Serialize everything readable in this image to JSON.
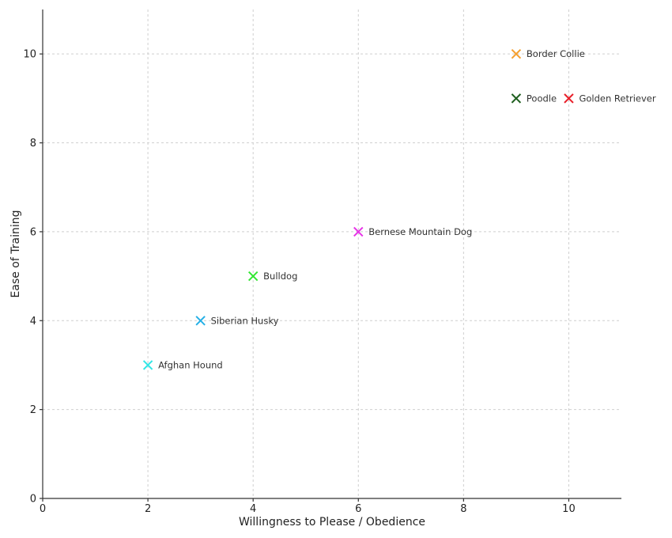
{
  "chart_data": {
    "type": "scatter",
    "title": "",
    "xlabel": "Willingness to Please / Obedience",
    "ylabel": "Ease of Training",
    "xlim": [
      0,
      11
    ],
    "ylim": [
      0,
      11
    ],
    "xticks": [
      0,
      2,
      4,
      6,
      8,
      10
    ],
    "yticks": [
      0,
      2,
      4,
      6,
      8,
      10
    ],
    "grid": true,
    "marker": "x",
    "points": [
      {
        "label": "Afghan Hound",
        "x": 2,
        "y": 3,
        "color": "#33e6e6"
      },
      {
        "label": "Siberian Husky",
        "x": 3,
        "y": 4,
        "color": "#26b0e6"
      },
      {
        "label": "Bulldog",
        "x": 4,
        "y": 5,
        "color": "#33e633"
      },
      {
        "label": "Bernese Mountain Dog",
        "x": 6,
        "y": 6,
        "color": "#e633e6"
      },
      {
        "label": "Border Collie",
        "x": 9,
        "y": 10,
        "color": "#f5a030"
      },
      {
        "label": "Poodle",
        "x": 9,
        "y": 9,
        "color": "#1f5f1f"
      },
      {
        "label": "Golden Retriever",
        "x": 10,
        "y": 9,
        "color": "#e8202a"
      }
    ]
  }
}
